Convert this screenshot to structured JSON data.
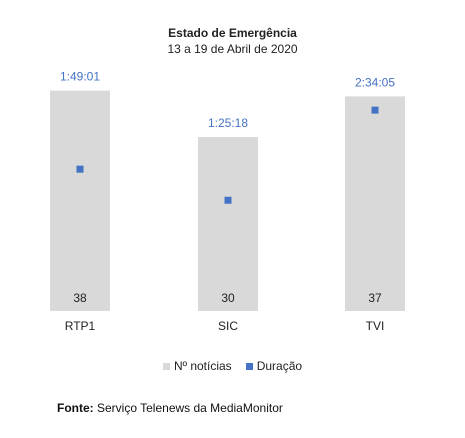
{
  "chart_data": {
    "type": "bar",
    "title": "Estado de Emergência",
    "subtitle": "13 a 19 de Abril de 2020",
    "categories": [
      "RTP1",
      "SIC",
      "TVI"
    ],
    "series": [
      {
        "name": "Nº notícias",
        "color": "#d9d9d9",
        "values": [
          38,
          30,
          37
        ],
        "labels": [
          "38",
          "30",
          "37"
        ]
      },
      {
        "name": "Duração",
        "color": "#4472c4",
        "marker": "square",
        "values": [
          "1:49:01",
          "1:25:18",
          "2:34:05"
        ],
        "labels": [
          "1:49:01",
          "1:25:18",
          "2:34:05"
        ]
      }
    ],
    "legend": "bottom",
    "grid": false
  },
  "source": {
    "label": "Fonte:",
    "text": "Serviço Telenews da MediaMonitor"
  }
}
